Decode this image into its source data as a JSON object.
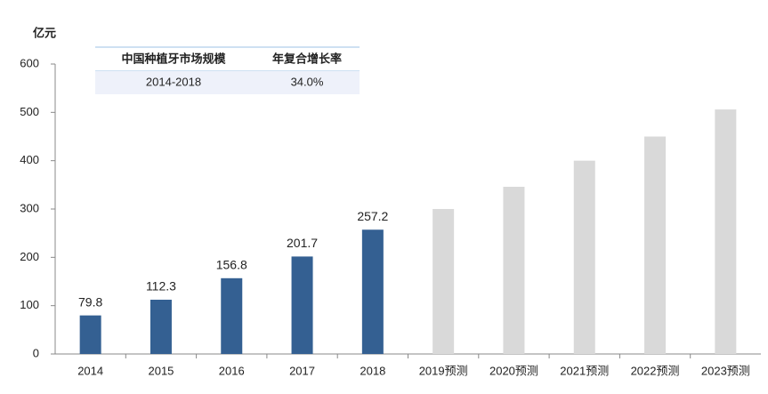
{
  "chart_data": {
    "type": "bar",
    "y_label": "亿元",
    "categories": [
      "2014",
      "2015",
      "2016",
      "2017",
      "2018",
      "2019预测",
      "2020预测",
      "2021预测",
      "2022预测",
      "2023预测"
    ],
    "series": [
      {
        "color": "#346092",
        "data_labels": true,
        "values": [
          79.8,
          112.3,
          156.8,
          201.7,
          257.2,
          null,
          null,
          null,
          null,
          null
        ]
      },
      {
        "color": "#d9d9d9",
        "data_labels": false,
        "values": [
          null,
          null,
          null,
          null,
          null,
          300,
          346,
          400,
          450,
          506
        ]
      }
    ],
    "ylim": [
      0,
      600
    ],
    "yticks": [
      0,
      100,
      200,
      300,
      400,
      500,
      600
    ],
    "grid": false,
    "table": {
      "header": [
        "中国种植牙市场规模",
        "年复合增长率"
      ],
      "rows": [
        [
          "2014-2018",
          "34.0%"
        ]
      ]
    }
  }
}
